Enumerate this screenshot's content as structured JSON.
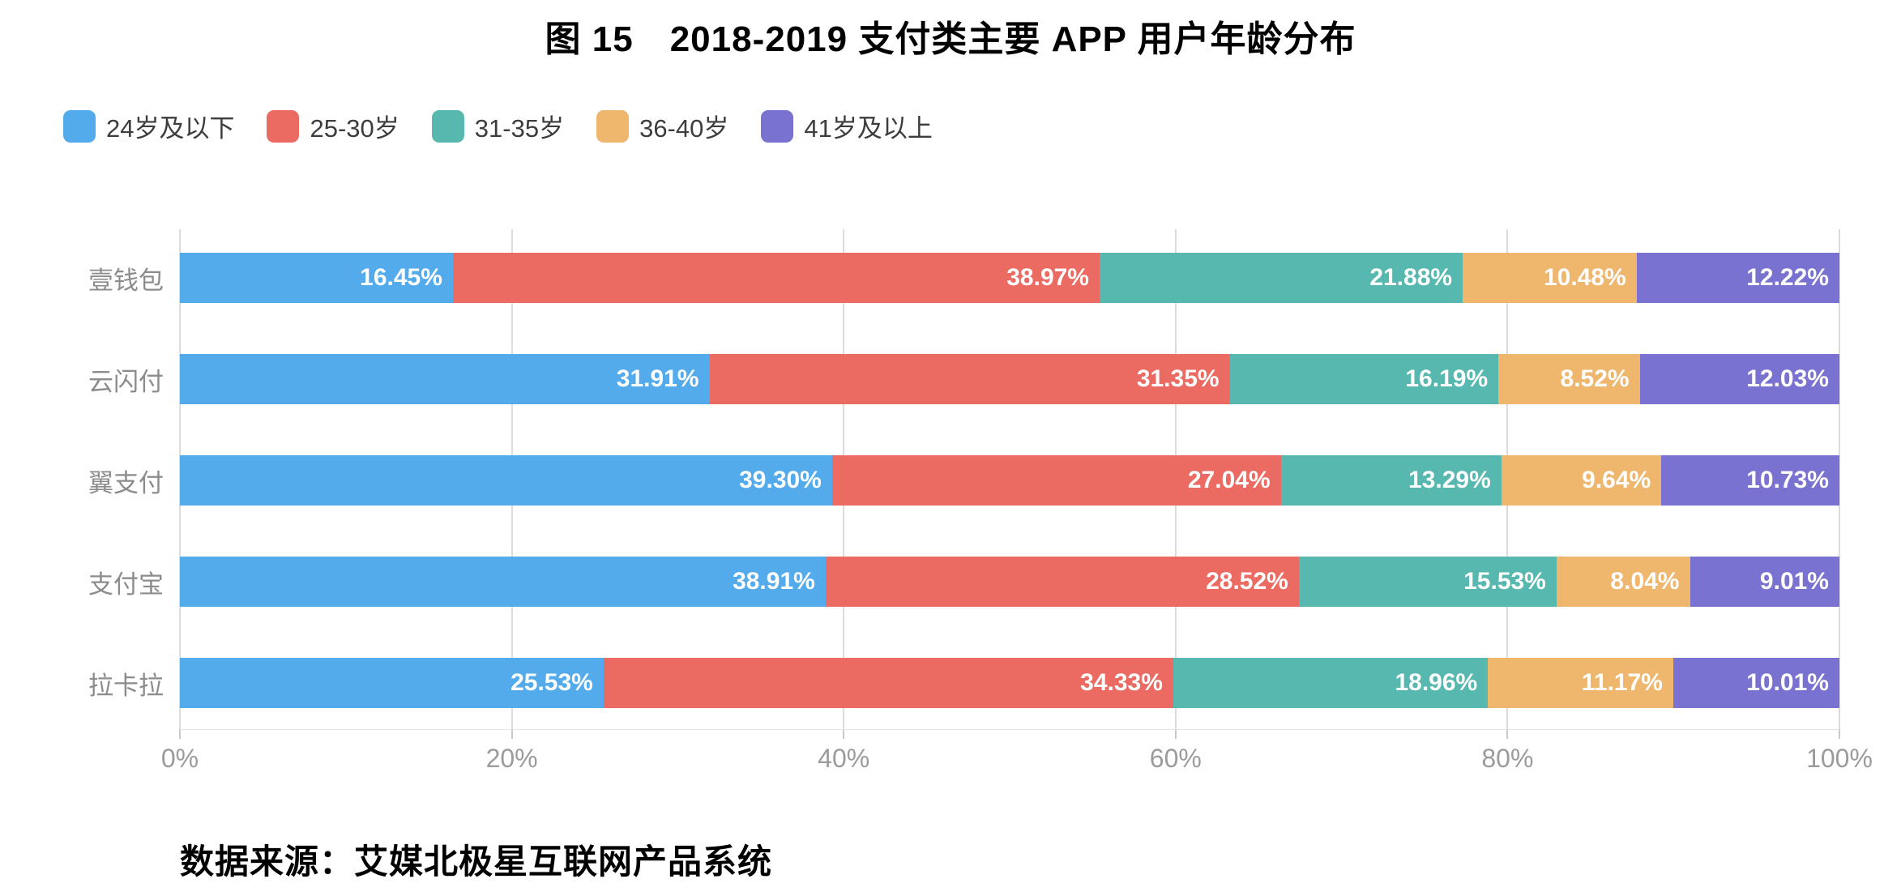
{
  "title": "图 15　2018-2019 支付类主要 APP 用户年龄分布",
  "source": "数据来源：艾媒北极星互联网产品系统",
  "chart_data": {
    "type": "bar",
    "orientation": "horizontal-stacked",
    "title": "图 15　2018-2019 支付类主要 APP 用户年龄分布",
    "categories": [
      "壹钱包",
      "云闪付",
      "翼支付",
      "支付宝",
      "拉卡拉"
    ],
    "series": [
      {
        "name": "24岁及以下",
        "color": "#54ABEC",
        "values": [
          16.45,
          31.91,
          39.3,
          38.91,
          25.53
        ]
      },
      {
        "name": "25-30岁",
        "color": "#EB6A61",
        "values": [
          38.97,
          31.35,
          27.04,
          28.52,
          34.33
        ]
      },
      {
        "name": "31-35岁",
        "color": "#56B8AE",
        "values": [
          21.88,
          16.19,
          13.29,
          15.53,
          18.96
        ]
      },
      {
        "name": "36-40岁",
        "color": "#EFB66D",
        "values": [
          10.48,
          8.52,
          9.64,
          8.04,
          11.17
        ]
      },
      {
        "name": "41岁及以上",
        "color": "#7A72D0",
        "values": [
          12.22,
          12.03,
          10.73,
          9.01,
          10.01
        ]
      }
    ],
    "value_suffix": "%",
    "value_decimals": 2,
    "x_ticks": [
      "0%",
      "20%",
      "40%",
      "60%",
      "80%",
      "100%"
    ],
    "xlim": [
      0,
      100
    ],
    "xlabel": "",
    "ylabel": "",
    "grid": true,
    "legend_position": "top-left",
    "colors": {
      "grid_line": "#dcdcdc",
      "axis_label": "#9b9b9b",
      "category_label": "#8c8c8c",
      "value_label": "#ffffff"
    }
  }
}
